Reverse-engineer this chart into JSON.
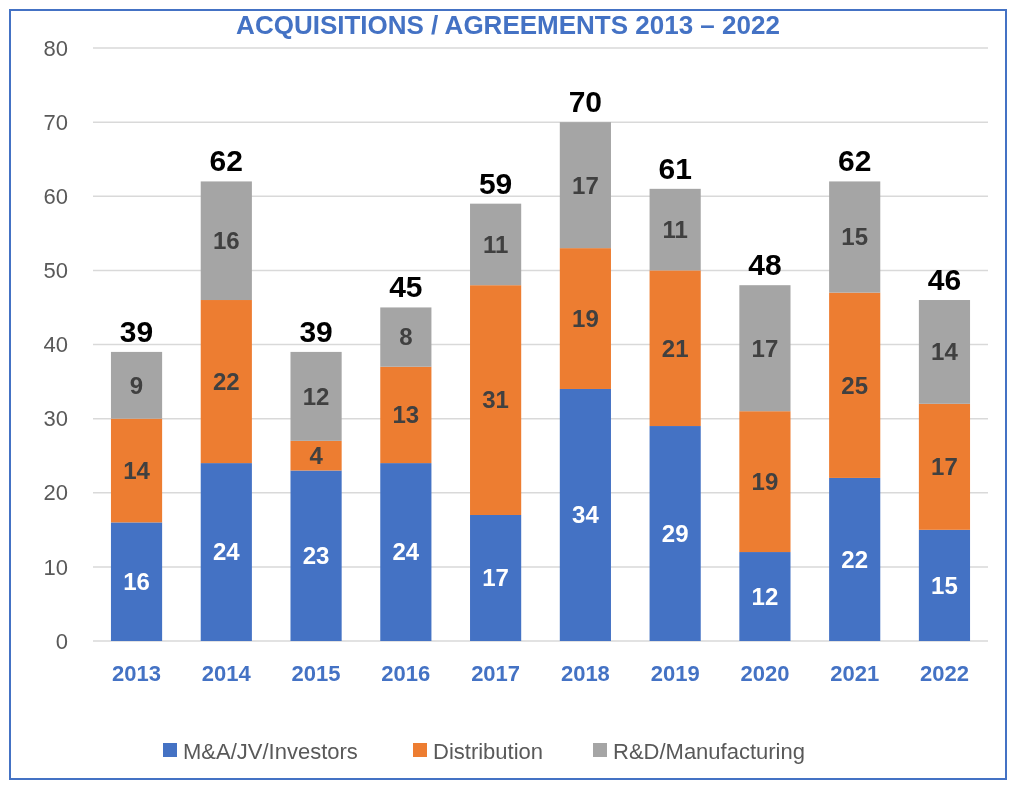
{
  "chart_data": {
    "type": "bar",
    "title": "ACQUISITIONS / AGREEMENTS 2013 – 2022",
    "categories": [
      "2013",
      "2014",
      "2015",
      "2016",
      "2017",
      "2018",
      "2019",
      "2020",
      "2021",
      "2022"
    ],
    "stacked": true,
    "series": [
      {
        "name": "M&A/JV/Investors",
        "color": "#4472c4",
        "values": [
          16,
          24,
          23,
          24,
          17,
          34,
          29,
          12,
          22,
          15
        ]
      },
      {
        "name": "Distribution",
        "color": "#ed7d31",
        "values": [
          14,
          22,
          4,
          13,
          31,
          19,
          21,
          19,
          25,
          17
        ]
      },
      {
        "name": "R&D/Manufacturing",
        "color": "#a5a5a5",
        "values": [
          9,
          16,
          12,
          8,
          11,
          17,
          11,
          17,
          15,
          14
        ]
      }
    ],
    "totals": [
      "39",
      "62",
      "39",
      "45",
      "59",
      "70",
      "61",
      "48",
      "62",
      "46"
    ],
    "ylim": [
      0,
      80
    ],
    "yticks": [
      0,
      10,
      20,
      30,
      40,
      50,
      60,
      70,
      80
    ],
    "grid": "y",
    "data_labels": true,
    "legend": "bottom"
  }
}
